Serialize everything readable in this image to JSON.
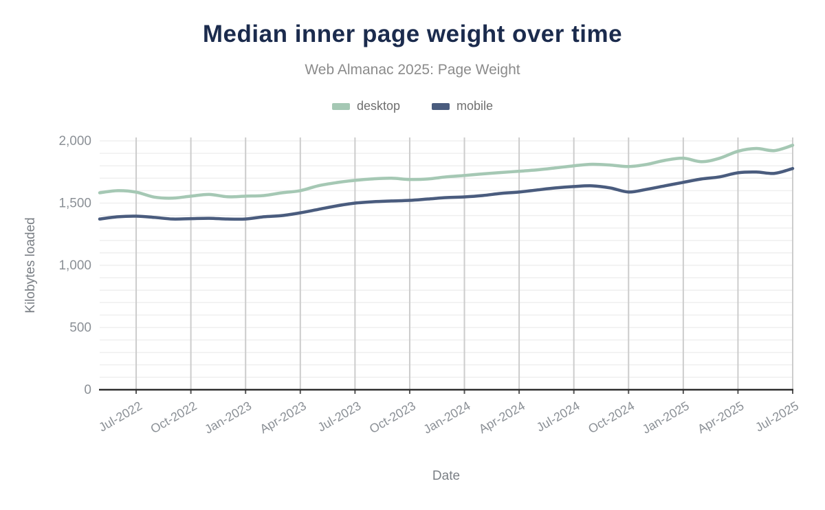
{
  "chart_data": {
    "type": "line",
    "title": "Median inner page weight over time",
    "subtitle": "Web Almanac 2025: Page Weight",
    "xlabel": "Date",
    "ylabel": "Kilobytes loaded",
    "legend_position": "top",
    "grid": {
      "horizontal_interval": 100,
      "vertical_gridlines_at_xticks": true
    },
    "ylim": [
      0,
      2000
    ],
    "yticks": [
      {
        "value": 0,
        "label": "0"
      },
      {
        "value": 500,
        "label": "500"
      },
      {
        "value": 1000,
        "label": "1,000"
      },
      {
        "value": 1500,
        "label": "1,500"
      },
      {
        "value": 2000,
        "label": "2,000"
      }
    ],
    "x": [
      "May-2022",
      "Jun-2022",
      "Jul-2022",
      "Aug-2022",
      "Sep-2022",
      "Oct-2022",
      "Nov-2022",
      "Dec-2022",
      "Jan-2023",
      "Feb-2023",
      "Mar-2023",
      "Apr-2023",
      "May-2023",
      "Jun-2023",
      "Jul-2023",
      "Aug-2023",
      "Sep-2023",
      "Oct-2023",
      "Nov-2023",
      "Dec-2023",
      "Jan-2024",
      "Feb-2024",
      "Mar-2024",
      "Apr-2024",
      "May-2024",
      "Jun-2024",
      "Jul-2024",
      "Aug-2024",
      "Sep-2024",
      "Oct-2024",
      "Nov-2024",
      "Dec-2024",
      "Jan-2025",
      "Feb-2025",
      "Mar-2025",
      "Apr-2025",
      "May-2025",
      "Jun-2025",
      "Jul-2025"
    ],
    "xticks": [
      "Jul-2022",
      "Oct-2022",
      "Jan-2023",
      "Apr-2023",
      "Jul-2023",
      "Oct-2023",
      "Jan-2024",
      "Apr-2024",
      "Jul-2024",
      "Oct-2024",
      "Jan-2025",
      "Apr-2025",
      "Jul-2025"
    ],
    "series": [
      {
        "name": "desktop",
        "color": "#a5c8b4",
        "values": [
          1583,
          1600,
          1588,
          1548,
          1540,
          1556,
          1570,
          1551,
          1556,
          1561,
          1583,
          1600,
          1640,
          1665,
          1683,
          1695,
          1700,
          1690,
          1694,
          1711,
          1722,
          1735,
          1746,
          1756,
          1767,
          1783,
          1800,
          1812,
          1806,
          1794,
          1811,
          1844,
          1861,
          1833,
          1861,
          1917,
          1939,
          1922,
          1965
        ]
      },
      {
        "name": "mobile",
        "color": "#4a5c7e",
        "values": [
          1372,
          1390,
          1395,
          1385,
          1372,
          1375,
          1378,
          1372,
          1372,
          1390,
          1400,
          1422,
          1450,
          1478,
          1500,
          1511,
          1517,
          1522,
          1533,
          1544,
          1550,
          1561,
          1578,
          1589,
          1606,
          1622,
          1633,
          1639,
          1622,
          1589,
          1611,
          1639,
          1667,
          1694,
          1711,
          1744,
          1750,
          1739,
          1778
        ]
      }
    ],
    "colors": {
      "title": "#1b2b4d",
      "subtitle": "#8b8b8b",
      "tick_labels": "#8b9096",
      "axis_titles": "#7a7f85",
      "vertical_grid": "#cccccc",
      "horizontal_grid": "#efefef",
      "baseline": "#2d2d2d"
    }
  }
}
